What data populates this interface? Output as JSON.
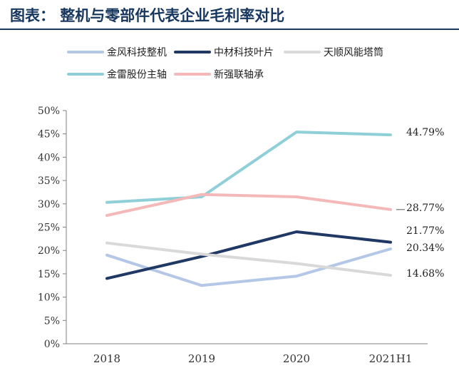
{
  "title": "图表：  整机与零部件代表企业毛利率对比",
  "chart_data": {
    "type": "line",
    "categories": [
      "2018",
      "2019",
      "2020",
      "2021H1"
    ],
    "ylim": [
      0,
      50
    ],
    "ytick_labels": [
      "0%",
      "5%",
      "10%",
      "15%",
      "20%",
      "25%",
      "30%",
      "35%",
      "40%",
      "45%",
      "50%"
    ],
    "grid": false,
    "legend_position": "top",
    "series": [
      {
        "name": "金风科技整机",
        "color": "#b4c7e7",
        "values": [
          19.0,
          12.5,
          14.5,
          20.34
        ],
        "end_label": "20.34%"
      },
      {
        "name": "中材科技叶片",
        "color": "#1f3864",
        "values": [
          14.0,
          18.7,
          24.0,
          21.77
        ],
        "end_label": "21.77%"
      },
      {
        "name": "天顺风能塔筒",
        "color": "#d9d9d9",
        "values": [
          21.6,
          19.2,
          17.2,
          14.68
        ],
        "end_label": "14.68%"
      },
      {
        "name": "金雷股份主轴",
        "color": "#8fcfd8",
        "values": [
          30.3,
          31.5,
          45.4,
          44.79
        ],
        "end_label": "44.79%"
      },
      {
        "name": "新强联轴承",
        "color": "#f4b8b8",
        "values": [
          27.5,
          32.0,
          31.5,
          28.77
        ],
        "end_label": "28.77%"
      }
    ]
  }
}
